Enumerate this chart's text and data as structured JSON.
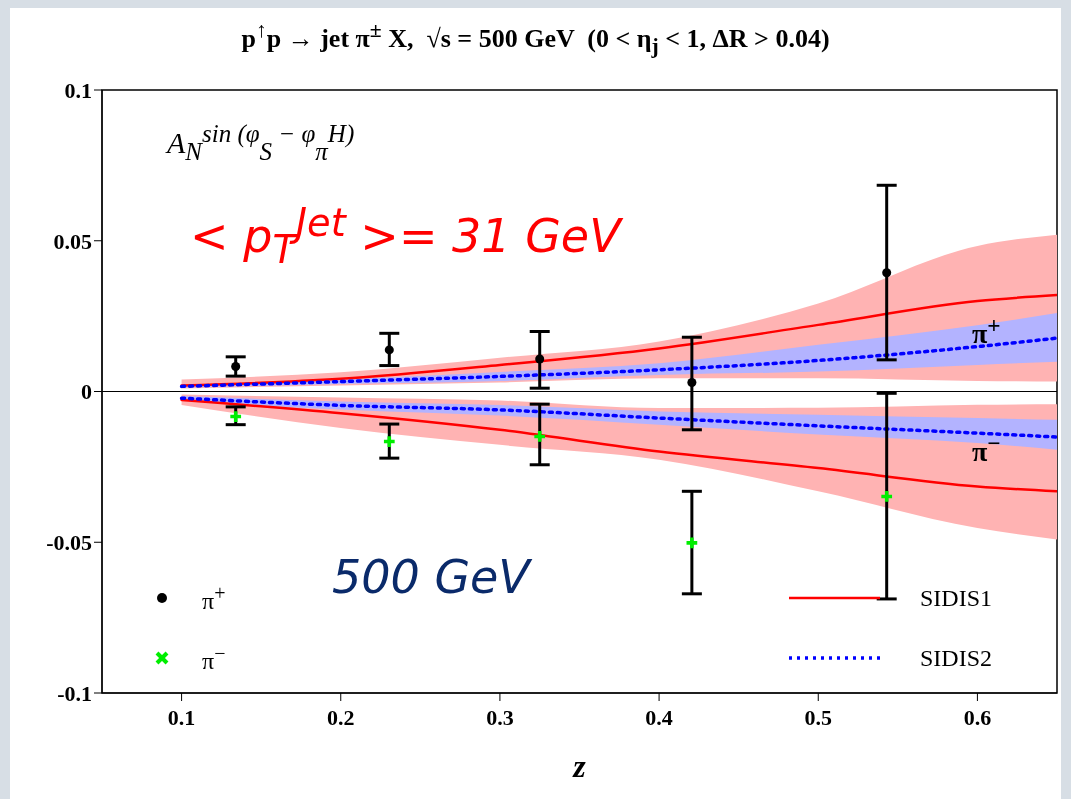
{
  "chart_data": {
    "type": "line",
    "title": "p$^{↑}$p → jet π$^{±}$ X,  √s = 500 GeV  (0 < η$_{j}$ < 1, ΔR > 0.04)",
    "xlabel": "z",
    "xlim": [
      0.05,
      0.65
    ],
    "xticks": [
      0.1,
      0.2,
      0.3,
      0.4,
      0.5,
      0.6
    ],
    "ylim": [
      -0.1,
      0.1
    ],
    "yticks": [
      -0.1,
      -0.05,
      0,
      0.05,
      0.1
    ],
    "grid": false,
    "legend": "bottom",
    "ref_lines": [
      {
        "axis": "y",
        "value": 0,
        "color": "#000000"
      }
    ],
    "annotations": [
      "A$_{N}$$^{sin (φ}$$_{S}$$^{ − φ}$$_{π}$$^{H}$$^{)}$",
      "< p$_{T}$$^{Jet}$ >= 31 GeV",
      "500 GeV",
      "π$^{+}$",
      "π$^{−}$"
    ],
    "series": [
      {
        "name": "SIDIS1",
        "color": "#ff0000",
        "line_style": "solid",
        "marker": "none",
        "x": [
          0.1,
          0.2,
          0.3,
          0.4,
          0.5,
          0.6,
          0.65
        ],
        "values": [
          0.002,
          0.0042,
          0.0088,
          0.0143,
          0.0221,
          0.03,
          0.032
        ],
        "lower": [
          0.001,
          0.002,
          0.003,
          0.0044,
          0.0044,
          0.0035,
          0.0033
        ],
        "upper": [
          0.004,
          0.0064,
          0.0112,
          0.0166,
          0.0292,
          0.0483,
          0.052
        ]
      },
      {
        "color": "#ff0000",
        "line_style": "solid",
        "marker": "none",
        "x": [
          0.1,
          0.2,
          0.3,
          0.4,
          0.5,
          0.6,
          0.65
        ],
        "values": [
          -0.0028,
          -0.0072,
          -0.0127,
          -0.0199,
          -0.0254,
          -0.0315,
          -0.0331
        ],
        "lower": [
          -0.0045,
          -0.0121,
          -0.0177,
          -0.0226,
          -0.0331,
          -0.0453,
          -0.0491
        ],
        "upper": [
          -0.001,
          -0.002,
          -0.003,
          -0.0055,
          -0.0054,
          -0.0044,
          -0.0042
        ]
      },
      {
        "name": "SIDIS2",
        "color": "#0000ff",
        "line_style": "dotted",
        "marker": "none",
        "x": [
          0.1,
          0.2,
          0.3,
          0.4,
          0.5,
          0.6,
          0.65
        ],
        "values": [
          0.0017,
          0.0033,
          0.005,
          0.0072,
          0.0103,
          0.0149,
          0.0177
        ],
        "lower": [
          0.0013,
          0.0025,
          0.0035,
          0.0055,
          0.0066,
          0.0088,
          0.0099
        ],
        "upper": [
          0.002,
          0.004,
          0.0065,
          0.0094,
          0.0155,
          0.022,
          0.026
        ]
      },
      {
        "color": "#0000ff",
        "line_style": "dotted",
        "marker": "none",
        "x": [
          0.1,
          0.2,
          0.3,
          0.4,
          0.5,
          0.6,
          0.65
        ],
        "values": [
          -0.0022,
          -0.0046,
          -0.0061,
          -0.0088,
          -0.0114,
          -0.0138,
          -0.0151
        ],
        "lower": [
          -0.003,
          -0.006,
          -0.008,
          -0.011,
          -0.0143,
          -0.0171,
          -0.0193
        ],
        "upper": [
          -0.0015,
          -0.0033,
          -0.0045,
          -0.0066,
          -0.0077,
          -0.0088,
          -0.0094
        ]
      },
      {
        "name": "π$^{+}$",
        "type": "scatter",
        "color": "#000000",
        "marker": "circle",
        "x": [
          0.134,
          0.2305,
          0.325,
          0.4206,
          0.543
        ],
        "values": [
          0.0083,
          0.0138,
          0.0108,
          0.003,
          0.0394
        ],
        "errors": [
          [
            0.0051,
            0.0115
          ],
          [
            0.0086,
            0.0193
          ],
          [
            0.0011,
            0.0199
          ],
          [
            -0.0127,
            0.018
          ],
          [
            0.0105,
            0.0684
          ]
        ]
      },
      {
        "name": "π$^{−}$",
        "type": "scatter",
        "color": "#00ee00",
        "marker": "cross",
        "x": [
          0.134,
          0.2305,
          0.325,
          0.4206,
          0.543
        ],
        "values": [
          -0.0083,
          -0.0166,
          -0.0149,
          -0.0502,
          -0.0348
        ],
        "errors": [
          [
            -0.011,
            -0.0051
          ],
          [
            -0.0221,
            -0.0108
          ],
          [
            -0.0243,
            -0.0042
          ],
          [
            -0.0671,
            -0.0331
          ],
          [
            -0.0688,
            -0.0006
          ]
        ]
      }
    ]
  }
}
